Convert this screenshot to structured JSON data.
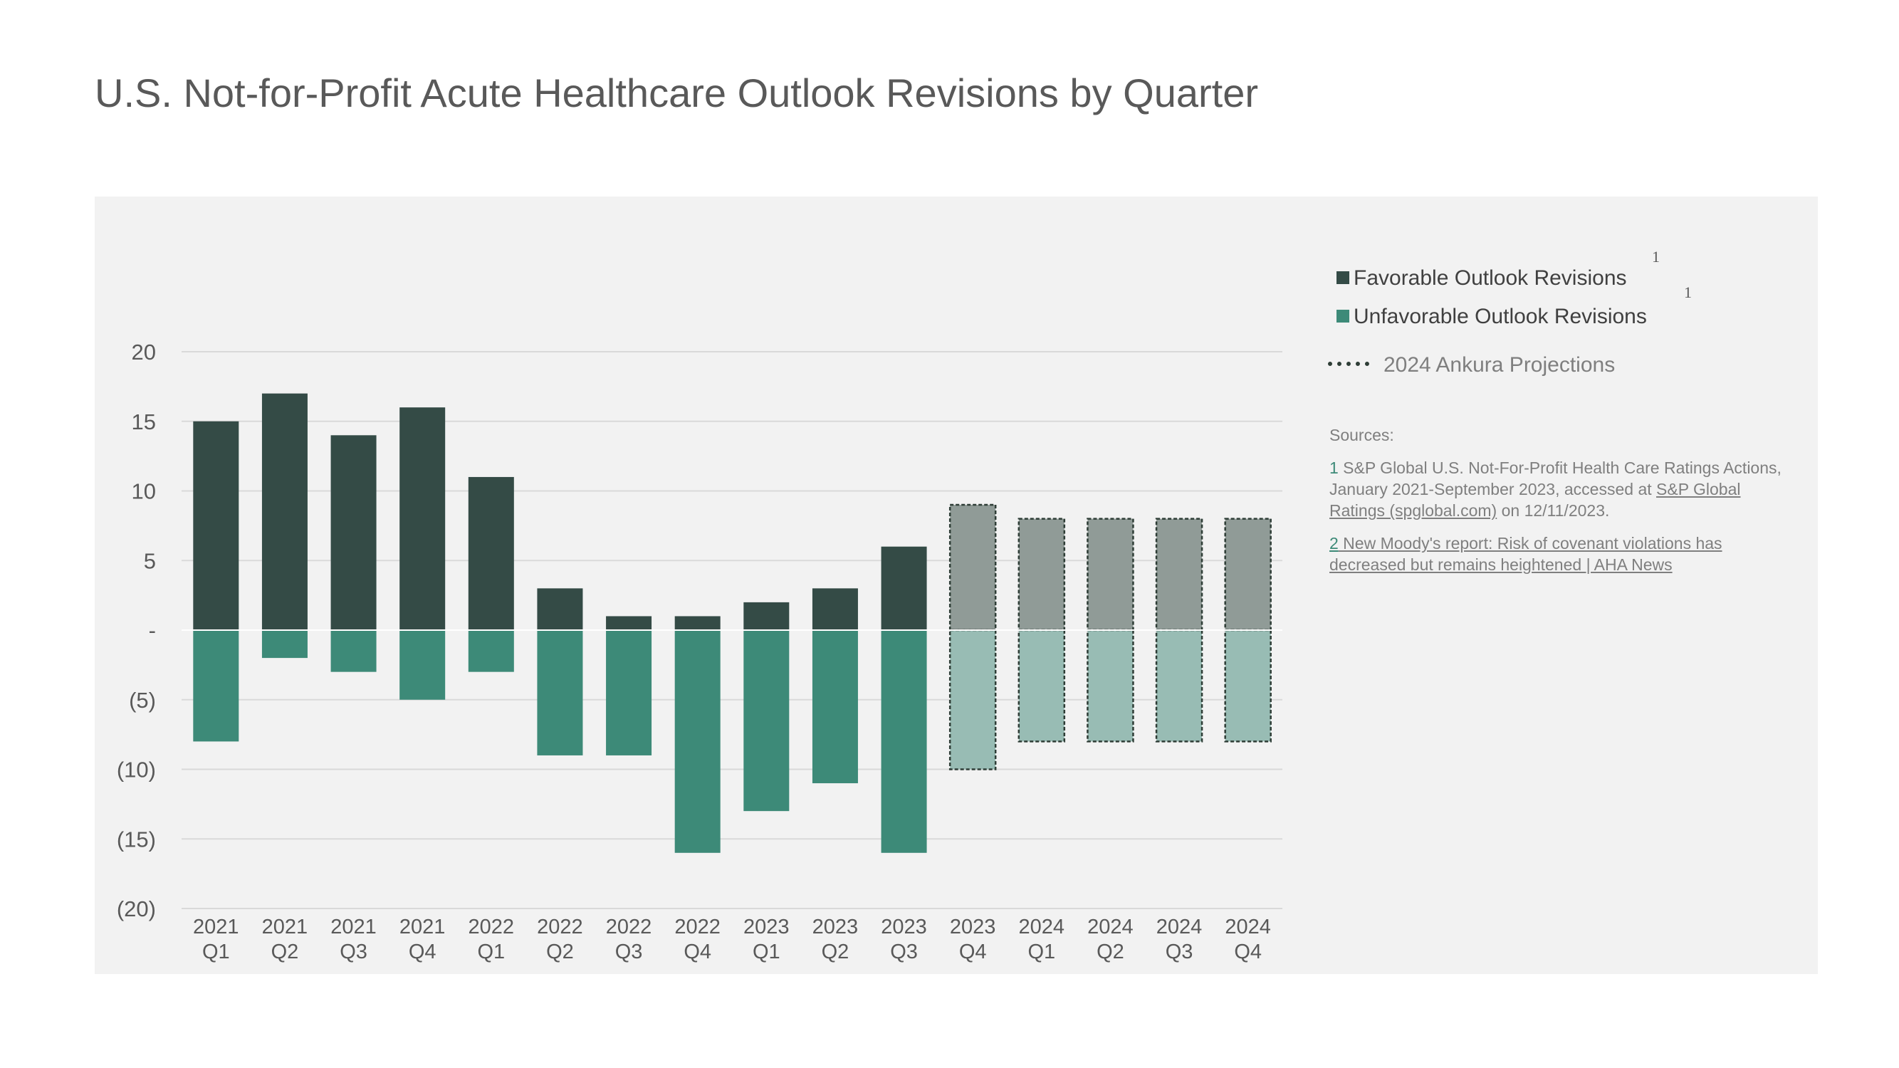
{
  "title": "U.S. Not-for-Profit Acute Healthcare Outlook Revisions by Quarter",
  "colors": {
    "favorable": "#344b46",
    "unfavorable": "#3d8a78",
    "favorable_projection": "#909b97",
    "unfavorable_projection": "#98bcb4",
    "projection_border": "#2e3d36",
    "panel_background": "#f2f2f2"
  },
  "legend": {
    "favorable": "Favorable Outlook Revisions",
    "unfavorable": "Unfavorable Outlook Revisions",
    "projections": "2024 Ankura Projections",
    "favorable_sup": "1",
    "unfavorable_sup": "1"
  },
  "sources": {
    "heading": "Sources:",
    "s1_num": "1",
    "s1_text": " S&P Global U.S. Not-For-Profit Health Care Ratings Actions, January 2021-September 2023, accessed at ",
    "s1_link": "S&P Global Ratings (spglobal.com)",
    "s1_tail": " on 12/11/2023.",
    "s2_num": "2",
    "s2_link": " New Moody's report: Risk of covenant violations has decreased but remains heightened  | AHA News"
  },
  "chart_data": {
    "type": "bar",
    "stacked": true,
    "categories": [
      [
        "2021",
        "Q1"
      ],
      [
        "2021",
        "Q2"
      ],
      [
        "2021",
        "Q3"
      ],
      [
        "2021",
        "Q4"
      ],
      [
        "2022",
        "Q1"
      ],
      [
        "2022",
        "Q2"
      ],
      [
        "2022",
        "Q3"
      ],
      [
        "2022",
        "Q4"
      ],
      [
        "2023",
        "Q1"
      ],
      [
        "2023",
        "Q2"
      ],
      [
        "2023",
        "Q3"
      ],
      [
        "2023",
        "Q4"
      ],
      [
        "2024",
        "Q1"
      ],
      [
        "2024",
        "Q2"
      ],
      [
        "2024",
        "Q3"
      ],
      [
        "2024",
        "Q4"
      ]
    ],
    "series": [
      {
        "name": "Favorable Outlook Revisions",
        "values": [
          15,
          17,
          14,
          16,
          11,
          3,
          1,
          1,
          2,
          3,
          6,
          9,
          8,
          8,
          8,
          8
        ]
      },
      {
        "name": "Unfavorable Outlook Revisions",
        "values": [
          -8,
          -2,
          -3,
          -5,
          -3,
          -9,
          -9,
          -16,
          -13,
          -11,
          -16,
          -10,
          -8,
          -8,
          -8,
          -8
        ]
      }
    ],
    "projected": [
      false,
      false,
      false,
      false,
      false,
      false,
      false,
      false,
      false,
      false,
      false,
      true,
      true,
      true,
      true,
      true
    ],
    "ylim": [
      -20,
      20
    ],
    "yticks": [
      20,
      15,
      10,
      5,
      0,
      -5,
      -10,
      -15,
      -20
    ],
    "ytick_labels": [
      "20",
      "15",
      "10",
      "5",
      "-",
      "(5)",
      "(10)",
      "(15)",
      "(20)"
    ],
    "grid": true,
    "legend_position": "right"
  }
}
